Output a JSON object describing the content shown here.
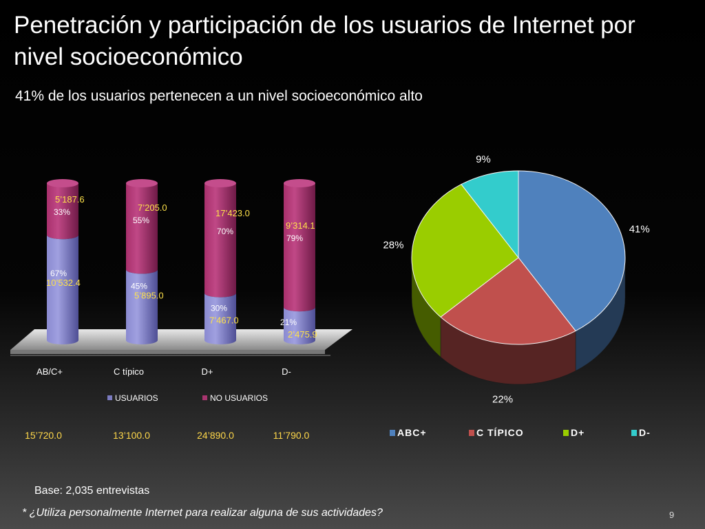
{
  "slide": {
    "title": "Penetración y participación de los usuarios de Internet por nivel socioeconómico",
    "subtitle": "41% de los usuarios pertenecen a un nivel socioeconómico alto",
    "base": "Base: 2,035 entrevistas",
    "footnote": "* ¿Utiliza personalmente  Internet para realizar alguna de sus actividades?",
    "page_number": "9",
    "totals": [
      "15’720.0",
      "13’100.0",
      "24’890.0",
      "11’790.0"
    ]
  },
  "chart_data": [
    {
      "type": "bar",
      "stacked": true,
      "categories": [
        "AB/C+",
        "C típico",
        "D+",
        "D-"
      ],
      "series": [
        {
          "name": "USUARIOS",
          "color": "#7b7bc0",
          "values": [
            67,
            45,
            30,
            21
          ],
          "labels": [
            "67%",
            "45%",
            "30%",
            "21%"
          ],
          "amounts": [
            "10’532.4",
            "5’895.0",
            "7’467.0",
            "2’475.9"
          ]
        },
        {
          "name": "NO USUARIOS",
          "color": "#a8356f",
          "values": [
            33,
            55,
            70,
            79
          ],
          "labels": [
            "33%",
            "55%",
            "70%",
            "79%"
          ],
          "amounts": [
            "5’187.6",
            "7’205.0",
            "17’423.0",
            "9’314.1"
          ]
        }
      ],
      "ylim": [
        0,
        100
      ],
      "legend_position": "bottom"
    },
    {
      "type": "pie",
      "categories": [
        "ABC+",
        "C TÍPICO",
        "D+",
        "D-"
      ],
      "values": [
        41,
        22,
        28,
        9
      ],
      "labels": [
        "41%",
        "22%",
        "28%",
        "9%"
      ],
      "colors": [
        "#4f81bd",
        "#c0504d",
        "#9acd00",
        "#33cccc"
      ],
      "legend_position": "bottom"
    }
  ]
}
